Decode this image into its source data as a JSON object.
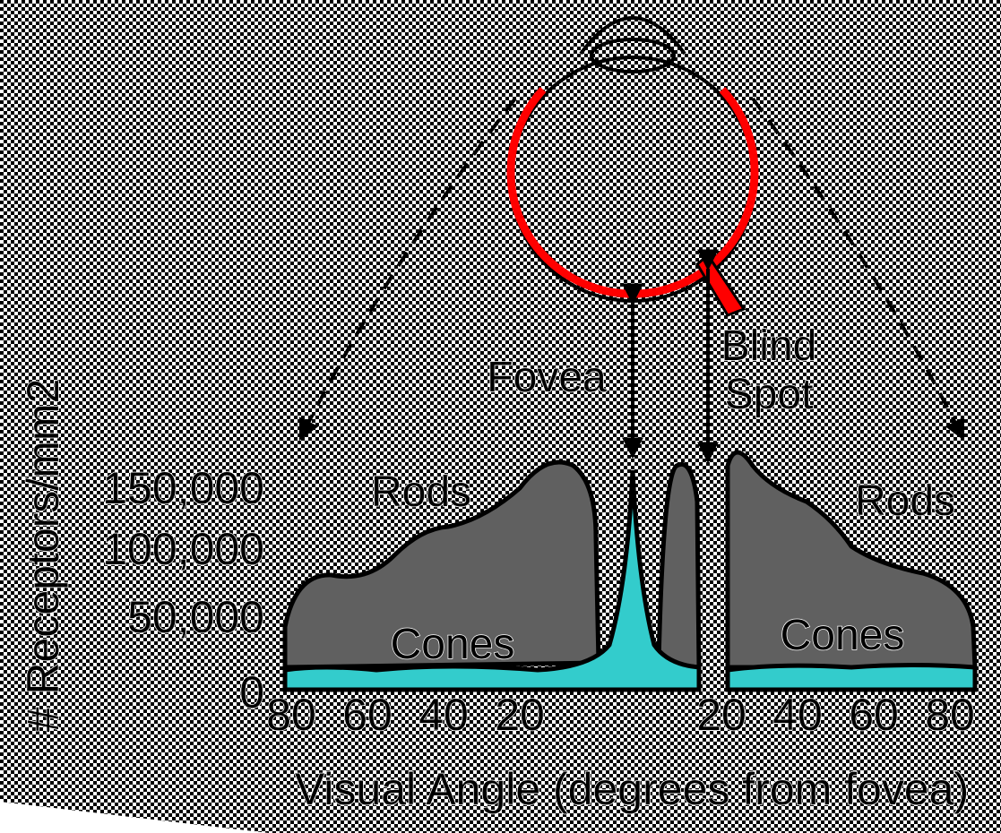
{
  "axis": {
    "y_label": "# Receptors/mm2",
    "y_ticks": [
      "150,000",
      "100,000",
      "50,000",
      "0"
    ],
    "x_ticks": [
      "80",
      "60",
      "40",
      "20",
      "20",
      "40",
      "60",
      "80"
    ],
    "x_label": "Visual Angle (degrees from fovea)"
  },
  "labels": {
    "rods_left": "Rods",
    "rods_right": "Rods",
    "cones_left": "Cones",
    "cones_right": "Cones",
    "fovea": "Fovea",
    "blind_1": "Blind",
    "blind_2": "Spot"
  }
}
